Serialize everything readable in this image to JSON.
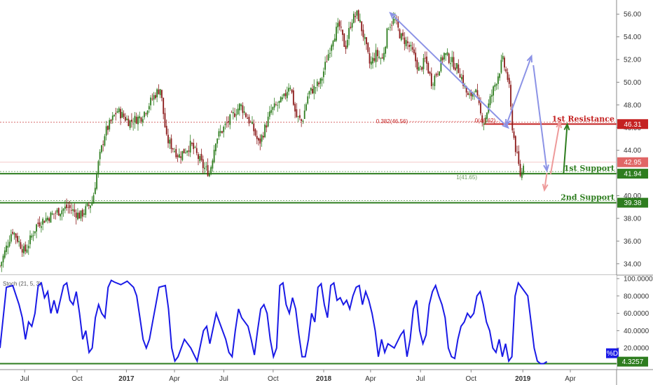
{
  "chart_data": [
    {
      "type": "candlestick",
      "ylim": [
        33,
        57
      ],
      "y_ticks": [
        {
          "v": 34,
          "label": "34.00"
        },
        {
          "v": 36,
          "label": "36.00"
        },
        {
          "v": 38,
          "label": "38.00"
        },
        {
          "v": 40,
          "label": "40.00"
        },
        {
          "v": 42,
          "label": "42.00"
        },
        {
          "v": 44,
          "label": "44.00"
        },
        {
          "v": 46,
          "label": "46.00"
        },
        {
          "v": 48,
          "label": "48.00"
        },
        {
          "v": 50,
          "label": "50.00"
        },
        {
          "v": 52,
          "label": "52.00"
        },
        {
          "v": 54,
          "label": "54.00"
        },
        {
          "v": 56,
          "label": "56.00"
        }
      ],
      "x_ticks": [
        {
          "t": 0.04,
          "label": "Jul",
          "bold": false
        },
        {
          "t": 0.125,
          "label": "Oct",
          "bold": false
        },
        {
          "t": 0.205,
          "label": "2017",
          "bold": true
        },
        {
          "t": 0.283,
          "label": "Apr",
          "bold": false
        },
        {
          "t": 0.363,
          "label": "Jul",
          "bold": false
        },
        {
          "t": 0.443,
          "label": "Oct",
          "bold": false
        },
        {
          "t": 0.525,
          "label": "2018",
          "bold": true
        },
        {
          "t": 0.601,
          "label": "Apr",
          "bold": false
        },
        {
          "t": 0.682,
          "label": "Jul",
          "bold": false
        },
        {
          "t": 0.764,
          "label": "Oct",
          "bold": false
        },
        {
          "t": 0.848,
          "label": "2019",
          "bold": true
        },
        {
          "t": 0.925,
          "label": "Apr",
          "bold": false
        }
      ],
      "price_path": [
        [
          0.0,
          33.8
        ],
        [
          0.02,
          37.0
        ],
        [
          0.04,
          35.0
        ],
        [
          0.06,
          37.5
        ],
        [
          0.09,
          38.5
        ],
        [
          0.11,
          39.0
        ],
        [
          0.13,
          38.2
        ],
        [
          0.15,
          39.5
        ],
        [
          0.16,
          43.0
        ],
        [
          0.17,
          45.5
        ],
        [
          0.19,
          47.5
        ],
        [
          0.21,
          46.5
        ],
        [
          0.23,
          47.0
        ],
        [
          0.25,
          48.8
        ],
        [
          0.26,
          49.5
        ],
        [
          0.27,
          45.0
        ],
        [
          0.29,
          43.5
        ],
        [
          0.31,
          44.5
        ],
        [
          0.33,
          42.5
        ],
        [
          0.34,
          42.0
        ],
        [
          0.35,
          45.0
        ],
        [
          0.37,
          46.5
        ],
        [
          0.39,
          48.0
        ],
        [
          0.41,
          46.0
        ],
        [
          0.42,
          44.5
        ],
        [
          0.44,
          47.5
        ],
        [
          0.46,
          48.5
        ],
        [
          0.47,
          50.0
        ],
        [
          0.48,
          47.0
        ],
        [
          0.49,
          46.5
        ],
        [
          0.5,
          49.0
        ],
        [
          0.52,
          50.0
        ],
        [
          0.53,
          52.0
        ],
        [
          0.54,
          54.0
        ],
        [
          0.55,
          55.0
        ],
        [
          0.56,
          53.0
        ],
        [
          0.57,
          55.5
        ],
        [
          0.58,
          56.0
        ],
        [
          0.59,
          54.0
        ],
        [
          0.6,
          51.5
        ],
        [
          0.61,
          52.5
        ],
        [
          0.62,
          52.0
        ],
        [
          0.63,
          55.0
        ],
        [
          0.64,
          55.5
        ],
        [
          0.65,
          54.0
        ],
        [
          0.66,
          53.5
        ],
        [
          0.67,
          52.5
        ],
        [
          0.68,
          51.0
        ],
        [
          0.69,
          52.0
        ],
        [
          0.7,
          50.0
        ],
        [
          0.71,
          51.0
        ],
        [
          0.72,
          52.5
        ],
        [
          0.73,
          52.0
        ],
        [
          0.745,
          51.0
        ],
        [
          0.76,
          48.5
        ],
        [
          0.77,
          49.5
        ],
        [
          0.78,
          47.0
        ],
        [
          0.785,
          46.5
        ],
        [
          0.795,
          48.5
        ],
        [
          0.81,
          51.0
        ],
        [
          0.815,
          52.0
        ],
        [
          0.82,
          51.0
        ],
        [
          0.825,
          50.0
        ],
        [
          0.83,
          46.5
        ],
        [
          0.835,
          44.5
        ],
        [
          0.84,
          43.0
        ],
        [
          0.845,
          41.5
        ],
        [
          0.849,
          42.95
        ]
      ],
      "levels": [
        {
          "name": "1st Resistance",
          "value": 46.31,
          "tag": "46.31",
          "color": "#c42121",
          "line_from": 0.784
        },
        {
          "name": "1st Support",
          "value": 41.94,
          "tag": "41.94",
          "color": "#2e7d1f",
          "line_from": 0.0
        },
        {
          "name": "2nd Support",
          "value": 39.38,
          "tag": "39.38",
          "color": "#2e7d1f",
          "line_from": 0.0
        }
      ],
      "last_price": {
        "value": 42.95,
        "tag": "42.95",
        "color": "#e06666"
      },
      "fib_labels": [
        {
          "text": "0.382(46.56)",
          "value": 46.56,
          "t": 0.61
        },
        {
          "text": "0(46.62)",
          "value": 46.62,
          "t": 0.77
        },
        {
          "text": "1(41.65)",
          "value": 41.65,
          "t": 0.74
        }
      ],
      "colors": {
        "up": "#2e7d1f",
        "down": "#8b1a1a",
        "arrow_blue": "#8c93e6",
        "arrow_pink": "#ee9a9a",
        "arrow_green": "#2e7d1f"
      }
    },
    {
      "type": "line",
      "legend_text": "Stoch (21, 5, 3)",
      "ylim": [
        0,
        100
      ],
      "y_ticks": [
        {
          "v": 100,
          "label": "100.0000"
        },
        {
          "v": 80,
          "label": "80.0000"
        },
        {
          "v": 60,
          "label": "60.0000"
        },
        {
          "v": 40,
          "label": "40.0000"
        },
        {
          "v": 20,
          "label": "20.0000"
        }
      ],
      "series": [
        {
          "name": "%D",
          "color": "#1a1ae6",
          "points": [
            [
              0.0,
              20
            ],
            [
              0.01,
              90
            ],
            [
              0.02,
              92
            ],
            [
              0.03,
              70
            ],
            [
              0.035,
              55
            ],
            [
              0.04,
              30
            ],
            [
              0.045,
              50
            ],
            [
              0.05,
              45
            ],
            [
              0.055,
              60
            ],
            [
              0.06,
              92
            ],
            [
              0.065,
              95
            ],
            [
              0.07,
              78
            ],
            [
              0.075,
              85
            ],
            [
              0.08,
              60
            ],
            [
              0.085,
              75
            ],
            [
              0.09,
              60
            ],
            [
              0.1,
              92
            ],
            [
              0.105,
              95
            ],
            [
              0.11,
              75
            ],
            [
              0.115,
              70
            ],
            [
              0.12,
              85
            ],
            [
              0.125,
              60
            ],
            [
              0.13,
              30
            ],
            [
              0.135,
              40
            ],
            [
              0.14,
              15
            ],
            [
              0.145,
              20
            ],
            [
              0.15,
              55
            ],
            [
              0.155,
              70
            ],
            [
              0.16,
              60
            ],
            [
              0.165,
              55
            ],
            [
              0.17,
              90
            ],
            [
              0.175,
              98
            ],
            [
              0.18,
              96
            ],
            [
              0.19,
              93
            ],
            [
              0.2,
              97
            ],
            [
              0.21,
              90
            ],
            [
              0.215,
              80
            ],
            [
              0.22,
              55
            ],
            [
              0.225,
              30
            ],
            [
              0.23,
              20
            ],
            [
              0.235,
              30
            ],
            [
              0.24,
              50
            ],
            [
              0.245,
              70
            ],
            [
              0.25,
              90
            ],
            [
              0.26,
              92
            ],
            [
              0.265,
              65
            ],
            [
              0.27,
              20
            ],
            [
              0.275,
              5
            ],
            [
              0.28,
              10
            ],
            [
              0.29,
              30
            ],
            [
              0.3,
              20
            ],
            [
              0.31,
              5
            ],
            [
              0.32,
              40
            ],
            [
              0.325,
              45
            ],
            [
              0.33,
              25
            ],
            [
              0.34,
              60
            ],
            [
              0.345,
              50
            ],
            [
              0.355,
              30
            ],
            [
              0.36,
              15
            ],
            [
              0.365,
              10
            ],
            [
              0.37,
              40
            ],
            [
              0.375,
              65
            ],
            [
              0.38,
              55
            ],
            [
              0.39,
              45
            ],
            [
              0.395,
              30
            ],
            [
              0.4,
              12
            ],
            [
              0.405,
              40
            ],
            [
              0.41,
              65
            ],
            [
              0.415,
              70
            ],
            [
              0.42,
              60
            ],
            [
              0.425,
              30
            ],
            [
              0.43,
              10
            ],
            [
              0.435,
              20
            ],
            [
              0.44,
              92
            ],
            [
              0.445,
              95
            ],
            [
              0.45,
              70
            ],
            [
              0.455,
              60
            ],
            [
              0.46,
              78
            ],
            [
              0.465,
              65
            ],
            [
              0.47,
              35
            ],
            [
              0.475,
              10
            ],
            [
              0.48,
              10
            ],
            [
              0.485,
              30
            ],
            [
              0.49,
              60
            ],
            [
              0.495,
              50
            ],
            [
              0.5,
              90
            ],
            [
              0.505,
              94
            ],
            [
              0.51,
              70
            ],
            [
              0.515,
              55
            ],
            [
              0.52,
              92
            ],
            [
              0.525,
              95
            ],
            [
              0.53,
              75
            ],
            [
              0.535,
              78
            ],
            [
              0.54,
              70
            ],
            [
              0.545,
              75
            ],
            [
              0.55,
              65
            ],
            [
              0.555,
              80
            ],
            [
              0.56,
              90
            ],
            [
              0.565,
              92
            ],
            [
              0.57,
              70
            ],
            [
              0.575,
              85
            ],
            [
              0.58,
              75
            ],
            [
              0.585,
              60
            ],
            [
              0.59,
              40
            ],
            [
              0.595,
              10
            ],
            [
              0.6,
              30
            ],
            [
              0.605,
              15
            ],
            [
              0.61,
              25
            ],
            [
              0.62,
              20
            ],
            [
              0.63,
              35
            ],
            [
              0.635,
              40
            ],
            [
              0.64,
              10
            ],
            [
              0.645,
              30
            ],
            [
              0.65,
              65
            ],
            [
              0.655,
              75
            ],
            [
              0.66,
              40
            ],
            [
              0.665,
              25
            ],
            [
              0.67,
              35
            ],
            [
              0.675,
              70
            ],
            [
              0.68,
              85
            ],
            [
              0.685,
              92
            ],
            [
              0.69,
              80
            ],
            [
              0.695,
              70
            ],
            [
              0.7,
              55
            ],
            [
              0.705,
              20
            ],
            [
              0.71,
              10
            ],
            [
              0.715,
              8
            ],
            [
              0.72,
              30
            ],
            [
              0.725,
              45
            ],
            [
              0.73,
              50
            ],
            [
              0.735,
              60
            ],
            [
              0.74,
              55
            ],
            [
              0.745,
              60
            ],
            [
              0.75,
              80
            ],
            [
              0.755,
              85
            ],
            [
              0.76,
              70
            ],
            [
              0.765,
              50
            ],
            [
              0.77,
              40
            ],
            [
              0.775,
              20
            ],
            [
              0.78,
              15
            ],
            [
              0.785,
              30
            ],
            [
              0.79,
              10
            ],
            [
              0.795,
              25
            ],
            [
              0.8,
              5
            ],
            [
              0.805,
              10
            ],
            [
              0.81,
              80
            ],
            [
              0.815,
              95
            ],
            [
              0.82,
              90
            ],
            [
              0.83,
              80
            ],
            [
              0.835,
              50
            ],
            [
              0.84,
              20
            ],
            [
              0.845,
              5
            ],
            [
              0.85,
              2
            ],
            [
              0.855,
              2
            ],
            [
              0.86,
              4.3257
            ]
          ],
          "last_value": 4.3257,
          "last_tag": "4.3257"
        }
      ],
      "baseline_value": 2
    }
  ]
}
